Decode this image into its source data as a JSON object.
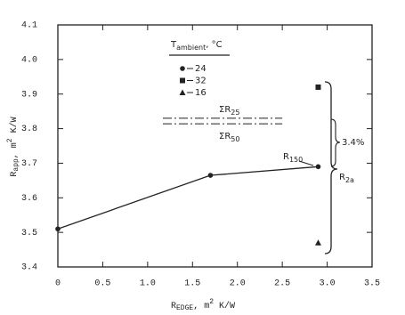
{
  "chart_data": {
    "type": "line",
    "color": "#222222",
    "xlim": [
      0,
      3.5
    ],
    "xticks": [
      0,
      0.5,
      {
        "value": 1,
        "label": "1.0"
      },
      1.5,
      {
        "value": 2,
        "label": "2.0"
      },
      2.5,
      {
        "value": 3,
        "label": "3.0"
      },
      3.5
    ],
    "ylim": [
      3.4,
      4.1
    ],
    "yticks": [
      3.4,
      3.5,
      3.6,
      3.7,
      3.8,
      3.9,
      {
        "value": 4,
        "label": "4.0"
      },
      4.1
    ],
    "x_label": {
      "main": "R",
      "sub": "EDGE",
      "mid": ", m",
      "sup": "2",
      "tail": " K/W"
    },
    "y_label": {
      "main": "R",
      "sub": "app",
      "mid": ", m",
      "sup": "2",
      "tail": " K/W"
    },
    "legend_title": {
      "main": "T",
      "sub": "ambient",
      "tail": ", °C"
    },
    "series": [
      {
        "name": "24",
        "marker": "circle",
        "x": [
          0,
          1.7,
          2.9
        ],
        "values": [
          3.51,
          3.665,
          3.69
        ]
      },
      {
        "name": "32",
        "marker": "square",
        "x": [
          2.9
        ],
        "values": [
          3.92
        ]
      },
      {
        "name": "16",
        "marker": "triangle",
        "x": [
          2.9
        ],
        "values": [
          3.47
        ]
      }
    ],
    "reference_lines": [
      {
        "main": "ΣR",
        "sub": "25",
        "y": 3.83,
        "x": [
          1.17,
          2.5
        ]
      },
      {
        "main": "ΣR",
        "sub": "50",
        "y": 3.814,
        "x": [
          1.17,
          2.5
        ]
      }
    ],
    "point_label": {
      "main": "R",
      "sub": "150"
    },
    "brace_labels": {
      "small": "3.4%",
      "main": "R",
      "sub": "2a"
    }
  }
}
